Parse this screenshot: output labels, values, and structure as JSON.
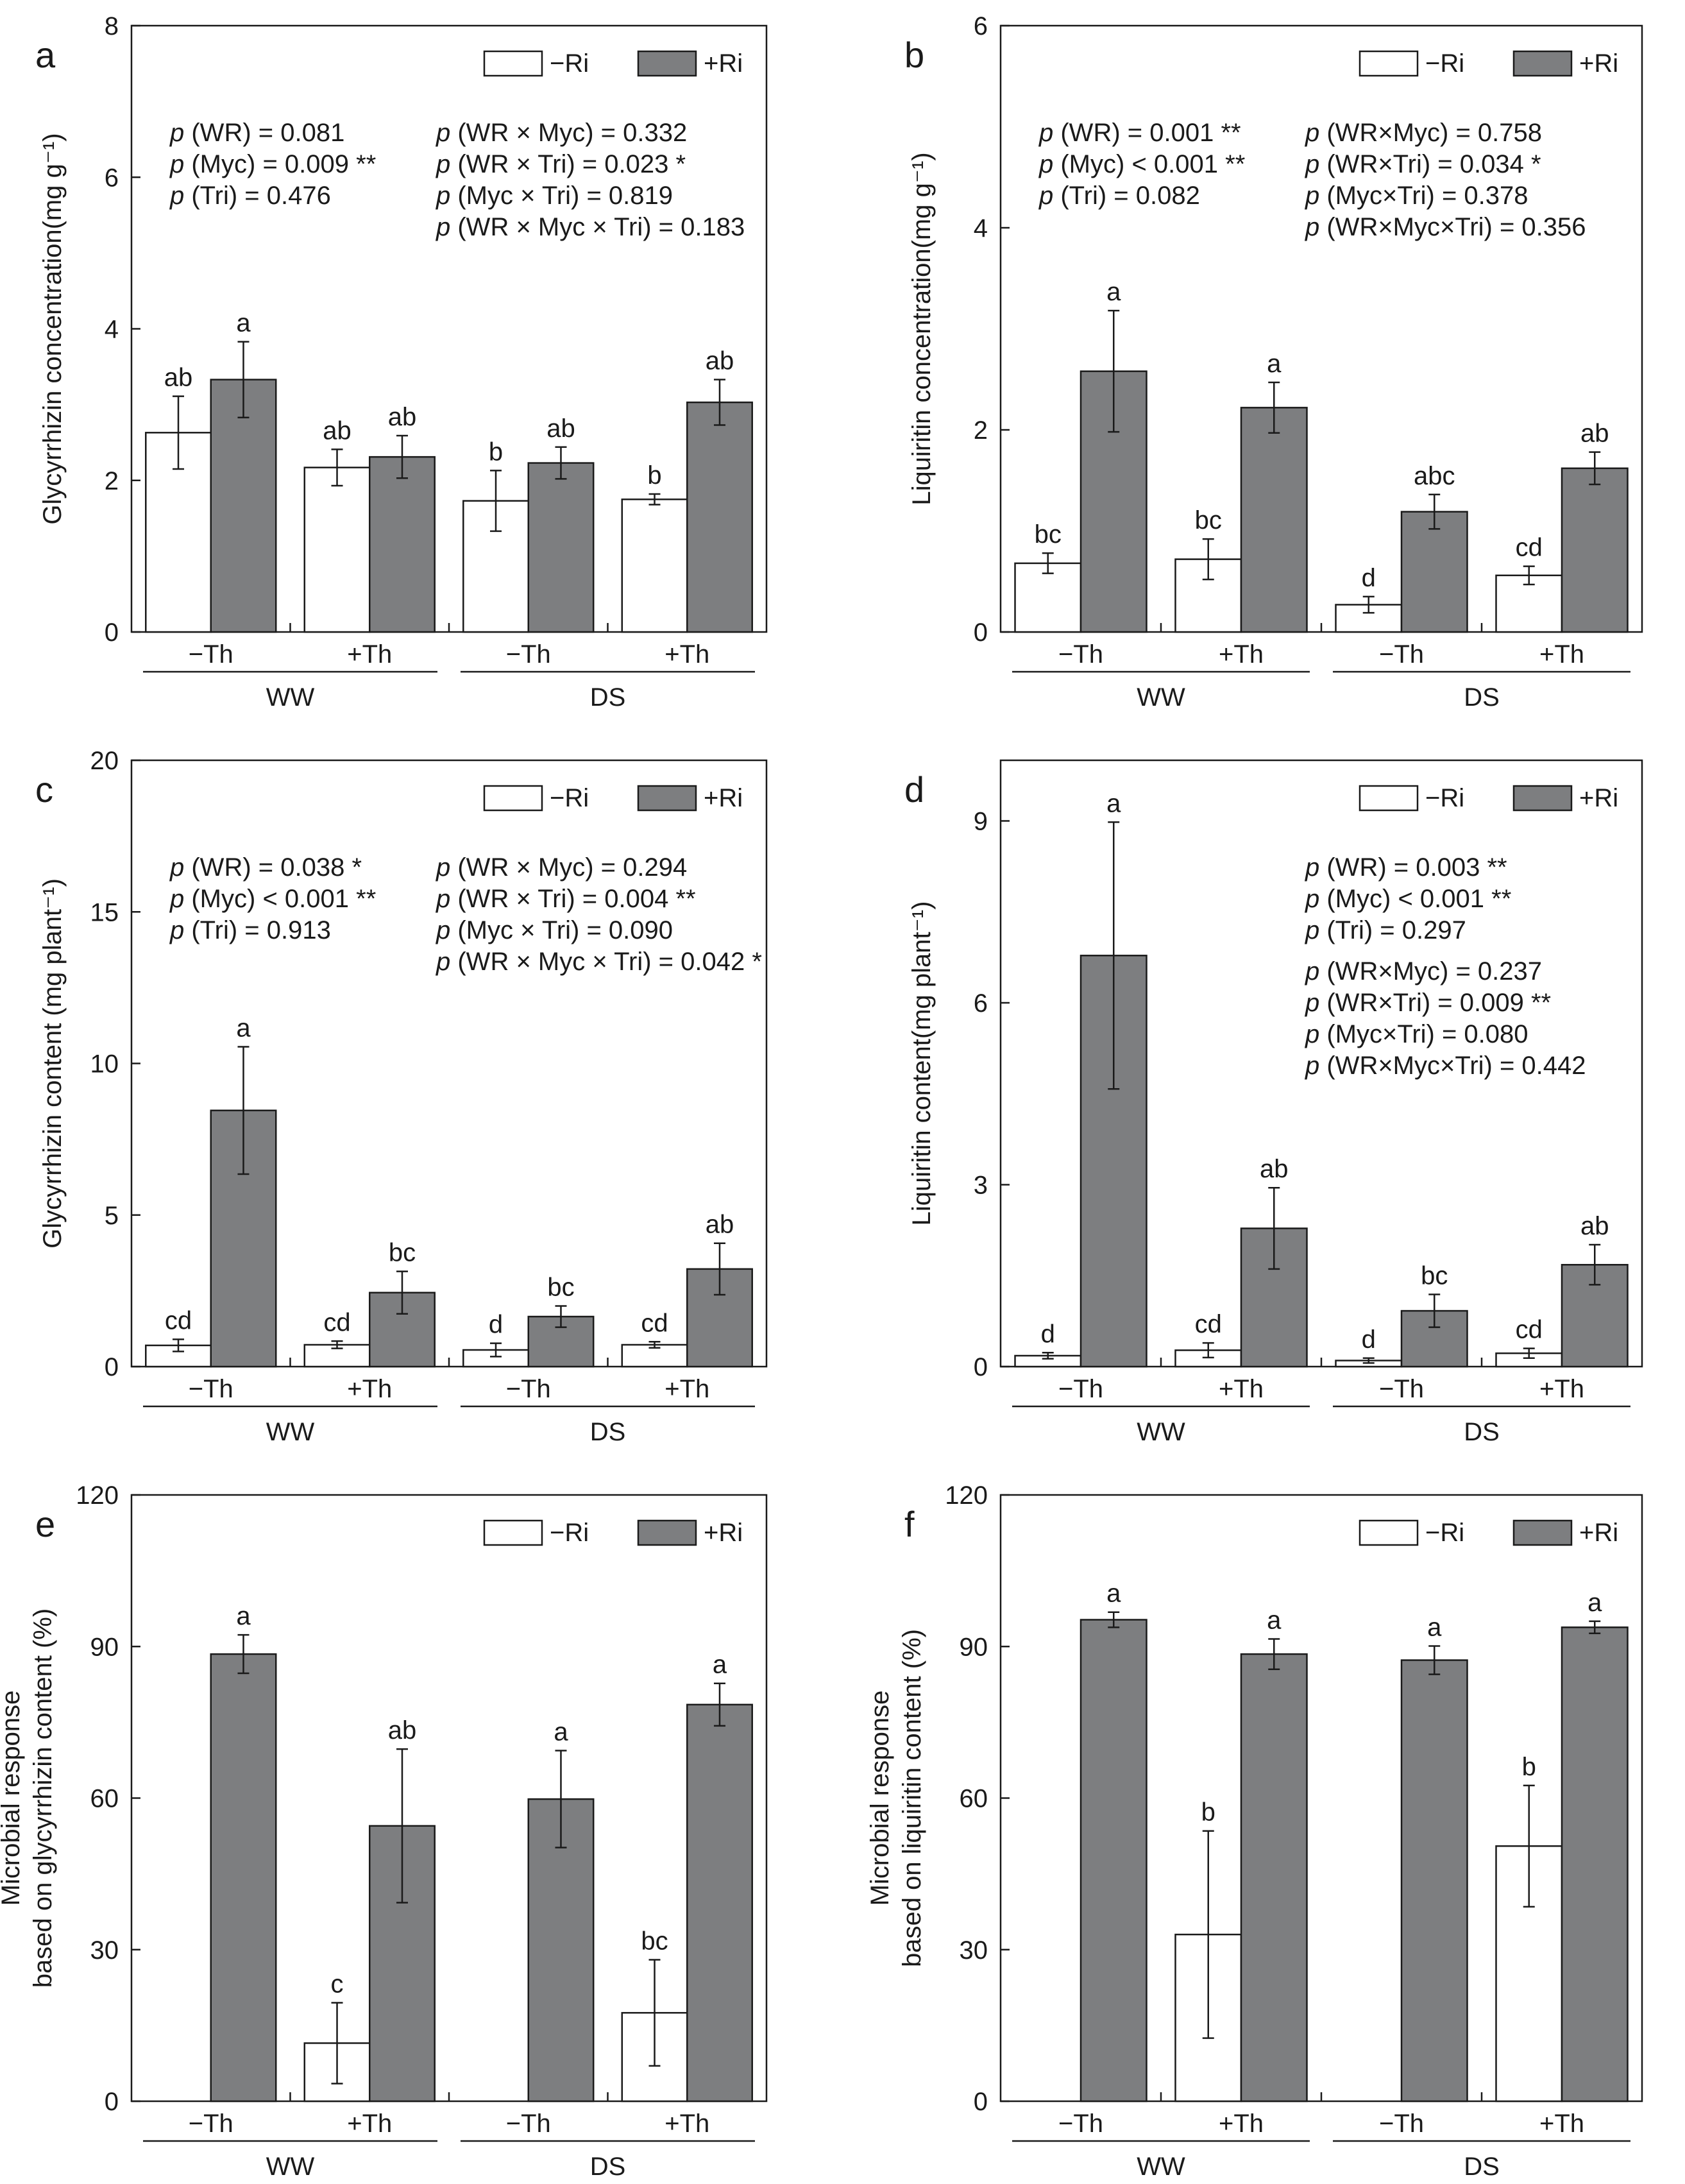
{
  "colors": {
    "control_bar": "#ffffff",
    "ri_bar": "#7d7e80",
    "ink": "#1a1a1a"
  },
  "legend": {
    "minus": "−Ri",
    "plus": "+Ri"
  },
  "x_axis": {
    "categories": [
      "−Th",
      "+Th",
      "−Th",
      "+Th"
    ],
    "groups": [
      "WW",
      "DS"
    ]
  },
  "chart_data": [
    {
      "panel_label": "a",
      "type": "bar",
      "ylabel": "Glycyrrhizin concentration(mg g⁻¹)",
      "ylim": [
        0,
        8
      ],
      "yticks": [
        0,
        2,
        4,
        6,
        8
      ],
      "categories": [
        "−Th",
        "+Th",
        "−Th",
        "+Th"
      ],
      "groups": [
        "WW",
        "DS"
      ],
      "series": [
        {
          "name": "−Ri",
          "values": [
            2.63,
            2.17,
            1.73,
            1.75
          ],
          "errors": [
            0.48,
            0.24,
            0.4,
            0.07
          ],
          "letters": [
            "ab",
            "ab",
            "b",
            "b"
          ]
        },
        {
          "name": "+Ri",
          "values": [
            3.33,
            2.31,
            2.23,
            3.03
          ],
          "errors": [
            0.5,
            0.28,
            0.21,
            0.3
          ],
          "letters": [
            "a",
            "ab",
            "ab",
            "ab"
          ]
        }
      ],
      "annotations": [
        [
          "p (WR) = 0.081",
          "p (Myc) = 0.009 **",
          "p (Tri) = 0.476"
        ],
        [
          "p (WR × Myc) = 0.332",
          "p (WR × Tri) = 0.023 *",
          "p (Myc × Tri) = 0.819",
          "p (WR × Myc × Tri) = 0.183"
        ]
      ]
    },
    {
      "panel_label": "b",
      "type": "bar",
      "ylabel": "Liquiritin concentration(mg g⁻¹)",
      "ylim": [
        0,
        6
      ],
      "yticks": [
        0,
        2,
        4,
        6
      ],
      "categories": [
        "−Th",
        "+Th",
        "−Th",
        "+Th"
      ],
      "groups": [
        "WW",
        "DS"
      ],
      "series": [
        {
          "name": "−Ri",
          "values": [
            0.68,
            0.72,
            0.27,
            0.56
          ],
          "errors": [
            0.1,
            0.2,
            0.08,
            0.09
          ],
          "letters": [
            "bc",
            "bc",
            "d",
            "cd"
          ]
        },
        {
          "name": "+Ri",
          "values": [
            2.58,
            2.22,
            1.19,
            1.62
          ],
          "errors": [
            0.6,
            0.25,
            0.17,
            0.16
          ],
          "letters": [
            "a",
            "a",
            "abc",
            "ab"
          ]
        }
      ],
      "annotations": [
        [
          "p (WR) = 0.001 **",
          "p (Myc) < 0.001 **",
          "p (Tri) = 0.082"
        ],
        [
          "p (WR×Myc) = 0.758",
          "p (WR×Tri) = 0.034 *",
          "p (Myc×Tri) = 0.378",
          "p (WR×Myc×Tri) = 0.356"
        ]
      ]
    },
    {
      "panel_label": "c",
      "type": "bar",
      "ylabel": "Glycyrrhizin content (mg plant⁻¹)",
      "ylim": [
        0,
        20
      ],
      "yticks": [
        0,
        5,
        10,
        15,
        20
      ],
      "categories": [
        "−Th",
        "+Th",
        "−Th",
        "+Th"
      ],
      "groups": [
        "WW",
        "DS"
      ],
      "series": [
        {
          "name": "−Ri",
          "values": [
            0.7,
            0.72,
            0.55,
            0.72
          ],
          "errors": [
            0.2,
            0.12,
            0.22,
            0.1
          ],
          "letters": [
            "cd",
            "cd",
            "d",
            "cd"
          ]
        },
        {
          "name": "+Ri",
          "values": [
            8.45,
            2.44,
            1.65,
            3.22
          ],
          "errors": [
            2.1,
            0.7,
            0.35,
            0.85
          ],
          "letters": [
            "a",
            "bc",
            "bc",
            "ab"
          ]
        }
      ],
      "annotations": [
        [
          "p (WR) = 0.038 *",
          "p (Myc) < 0.001 **",
          "p (Tri) = 0.913"
        ],
        [
          "p (WR × Myc) = 0.294",
          "p (WR × Tri) = 0.004 **",
          "p (Myc × Tri) = 0.090",
          "p (WR × Myc × Tri) = 0.042 *"
        ]
      ]
    },
    {
      "panel_label": "d",
      "type": "bar",
      "ylabel": "Liquiritin content(mg plant⁻¹)",
      "ylim": [
        0,
        10
      ],
      "yticks": [
        0,
        3,
        6,
        9
      ],
      "categories": [
        "−Th",
        "+Th",
        "−Th",
        "+Th"
      ],
      "groups": [
        "WW",
        "DS"
      ],
      "series": [
        {
          "name": "−Ri",
          "values": [
            0.18,
            0.27,
            0.1,
            0.22
          ],
          "errors": [
            0.05,
            0.12,
            0.04,
            0.08
          ],
          "letters": [
            "d",
            "cd",
            "d",
            "cd"
          ]
        },
        {
          "name": "+Ri",
          "values": [
            6.78,
            2.28,
            0.92,
            1.68
          ],
          "errors": [
            2.2,
            0.67,
            0.27,
            0.33
          ],
          "letters": [
            "a",
            "ab",
            "bc",
            "ab"
          ]
        }
      ],
      "annotations": [
        [
          "p (WR) = 0.003 **",
          "p (Myc) < 0.001 **",
          "p (Tri) = 0.297",
          "p (WR×Myc) = 0.237",
          "p (WR×Tri) = 0.009 **",
          "p (Myc×Tri) = 0.080",
          "p (WR×Myc×Tri) = 0.442"
        ]
      ]
    },
    {
      "panel_label": "e",
      "type": "bar",
      "ylabel": [
        "Microbial response",
        "based on glycyrrhizin content (%)"
      ],
      "ylim": [
        0,
        120
      ],
      "yticks": [
        0,
        30,
        60,
        90,
        120
      ],
      "categories": [
        "−Th",
        "+Th",
        "−Th",
        "+Th"
      ],
      "groups": [
        "WW",
        "DS"
      ],
      "series": [
        {
          "name": "−Ri",
          "values": [
            null,
            11.5,
            null,
            17.5
          ],
          "errors": [
            null,
            8.0,
            null,
            10.5
          ],
          "letters": [
            null,
            "c",
            null,
            "bc"
          ]
        },
        {
          "name": "+Ri",
          "values": [
            88.5,
            54.5,
            59.8,
            78.5
          ],
          "errors": [
            3.8,
            15.2,
            9.6,
            4.2
          ],
          "letters": [
            "a",
            "ab",
            "a",
            "a"
          ]
        }
      ],
      "annotations": []
    },
    {
      "panel_label": "f",
      "type": "bar",
      "ylabel": [
        "Microbial response",
        "based on liquiritin content (%)"
      ],
      "ylim": [
        0,
        120
      ],
      "yticks": [
        0,
        30,
        60,
        90,
        120
      ],
      "categories": [
        "−Th",
        "+Th",
        "−Th",
        "+Th"
      ],
      "groups": [
        "WW",
        "DS"
      ],
      "series": [
        {
          "name": "−Ri",
          "values": [
            null,
            33.0,
            null,
            50.5
          ],
          "errors": [
            null,
            20.5,
            null,
            12.0
          ],
          "letters": [
            null,
            "b",
            null,
            "b"
          ]
        },
        {
          "name": "+Ri",
          "values": [
            95.3,
            88.5,
            87.3,
            93.8
          ],
          "errors": [
            1.5,
            3.0,
            2.8,
            1.2
          ],
          "letters": [
            "a",
            "a",
            "a",
            "a"
          ]
        }
      ],
      "annotations": []
    }
  ]
}
